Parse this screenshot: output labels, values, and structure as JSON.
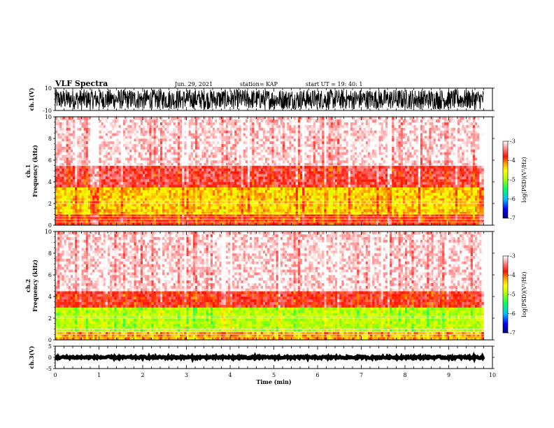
{
  "header": {
    "title": "VLF Spectra",
    "date": "Jun. 29, 2021",
    "station": "station= KAP",
    "start_ut": "start UT =  19: 40: 1"
  },
  "colors": {
    "colormap": [
      "#000080",
      "#0000ff",
      "#0080ff",
      "#00e0ff",
      "#00ff40",
      "#80ff00",
      "#ffff00",
      "#ffa000",
      "#ff2000",
      "#ff6060",
      "#ffe6e6",
      "#ffffff"
    ]
  },
  "chart_data": [
    {
      "type": "line",
      "name": "ch1-waveform",
      "ylabel": "ch.1(V)",
      "ylim": [
        -10,
        10
      ],
      "yticks": [
        "10",
        "-10"
      ],
      "xlim": [
        0,
        10
      ],
      "description_values": "dense oscillating waveform, amplitude roughly -9 to 9 V"
    },
    {
      "type": "heatmap",
      "name": "ch1-spectrogram",
      "ylabel": "ch.1\nFrequency (kHz)",
      "ylabel_top": "ch.1",
      "ylabel_bottom": "Frequency (kHz)",
      "ylim": [
        0,
        10
      ],
      "yticks": [
        "0",
        "2",
        "4",
        "6",
        "8",
        "10"
      ],
      "xlim": [
        0,
        9.8
      ],
      "colorbar": {
        "label": "log(PSD)(V²/Hz)",
        "range": [
          -7,
          -3
        ],
        "ticks": [
          "-3",
          "-4",
          "-5",
          "-6",
          "-7"
        ]
      },
      "bands": [
        {
          "from": 0.0,
          "to": 1.0,
          "level": -3.8
        },
        {
          "from": 1.0,
          "to": 3.5,
          "level": -4.3
        },
        {
          "from": 3.5,
          "to": 5.5,
          "level": -3.6
        },
        {
          "from": 5.5,
          "to": 10.0,
          "level": -3.1
        }
      ]
    },
    {
      "type": "heatmap",
      "name": "ch2-spectrogram",
      "ylabel": "ch.2\nFrequency (kHz)",
      "ylabel_top": "ch.2",
      "ylabel_bottom": "Frequency (kHz)",
      "ylim": [
        0,
        10
      ],
      "yticks": [
        "0",
        "2",
        "4",
        "6",
        "8",
        "10"
      ],
      "xlim": [
        0,
        9.8
      ],
      "colorbar": {
        "label": "log(PSD)(V²/Hz)",
        "range": [
          -7,
          -3
        ],
        "ticks": [
          "-3",
          "-4",
          "-5",
          "-6",
          "-7"
        ]
      },
      "bands": [
        {
          "from": 0.0,
          "to": 0.8,
          "level": -4.2
        },
        {
          "from": 0.8,
          "to": 3.0,
          "level": -4.9
        },
        {
          "from": 3.0,
          "to": 4.6,
          "level": -3.7
        },
        {
          "from": 4.6,
          "to": 10.0,
          "level": -3.1
        }
      ]
    },
    {
      "type": "line",
      "name": "ch3-waveform",
      "ylabel": "ch.3(V)",
      "ylim": [
        -5,
        5
      ],
      "yticks": [
        "5",
        "0",
        "-5"
      ],
      "xlim": [
        0,
        10
      ],
      "xlabel": "Time (min)",
      "xticks": [
        "0",
        "1",
        "2",
        "3",
        "4",
        "5",
        "6",
        "7",
        "8",
        "9",
        "10"
      ],
      "description_values": "flat thick trace near 0 V"
    }
  ]
}
